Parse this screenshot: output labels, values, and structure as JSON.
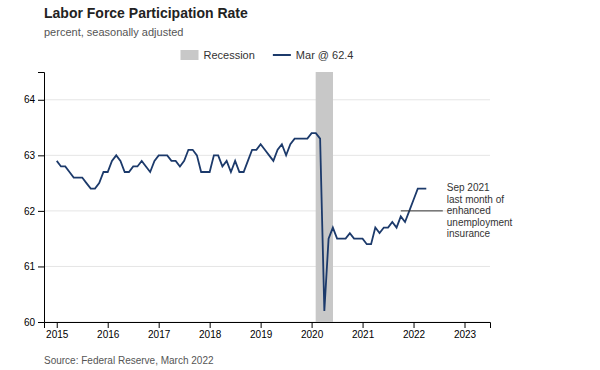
{
  "chart_data": {
    "type": "line",
    "title": "Labor Force Participation Rate",
    "subtitle": "percent, seasonally adjusted",
    "source": "Source: Federal Reserve, March 2022",
    "x": [
      2015.0,
      2015.083,
      2015.167,
      2015.25,
      2015.333,
      2015.417,
      2015.5,
      2015.583,
      2015.667,
      2015.75,
      2015.833,
      2015.917,
      2016.0,
      2016.083,
      2016.167,
      2016.25,
      2016.333,
      2016.417,
      2016.5,
      2016.583,
      2016.667,
      2016.75,
      2016.833,
      2016.917,
      2017.0,
      2017.083,
      2017.167,
      2017.25,
      2017.333,
      2017.417,
      2017.5,
      2017.583,
      2017.667,
      2017.75,
      2017.833,
      2017.917,
      2018.0,
      2018.083,
      2018.167,
      2018.25,
      2018.333,
      2018.417,
      2018.5,
      2018.583,
      2018.667,
      2018.75,
      2018.833,
      2018.917,
      2019.0,
      2019.083,
      2019.167,
      2019.25,
      2019.333,
      2019.417,
      2019.5,
      2019.583,
      2019.667,
      2019.75,
      2019.833,
      2019.917,
      2020.0,
      2020.083,
      2020.167,
      2020.25,
      2020.333,
      2020.417,
      2020.5,
      2020.583,
      2020.667,
      2020.75,
      2020.833,
      2020.917,
      2021.0,
      2021.083,
      2021.167,
      2021.25,
      2021.333,
      2021.417,
      2021.5,
      2021.583,
      2021.667,
      2021.75,
      2021.833,
      2021.917,
      2022.0,
      2022.083,
      2022.167,
      2022.25
    ],
    "series": [
      {
        "name": "Mar @ 62.4",
        "color": "#1c3a6b",
        "values": [
          62.9,
          62.8,
          62.8,
          62.7,
          62.6,
          62.6,
          62.6,
          62.5,
          62.4,
          62.4,
          62.5,
          62.7,
          62.7,
          62.9,
          63.0,
          62.9,
          62.7,
          62.7,
          62.8,
          62.8,
          62.9,
          62.8,
          62.7,
          62.9,
          63.0,
          63.0,
          63.0,
          62.9,
          62.9,
          62.8,
          62.9,
          63.1,
          63.1,
          63.0,
          62.7,
          62.7,
          62.7,
          63.0,
          63.0,
          62.8,
          62.9,
          62.7,
          62.9,
          62.7,
          62.7,
          62.9,
          63.1,
          63.1,
          63.2,
          63.1,
          63.0,
          62.9,
          63.1,
          63.2,
          63.0,
          63.2,
          63.3,
          63.3,
          63.3,
          63.3,
          63.4,
          63.4,
          63.3,
          60.2,
          61.5,
          61.7,
          61.5,
          61.5,
          61.5,
          61.6,
          61.5,
          61.5,
          61.5,
          61.4,
          61.4,
          61.7,
          61.6,
          61.7,
          61.7,
          61.8,
          61.7,
          61.9,
          61.8,
          62.0,
          62.2,
          62.4,
          62.4,
          62.4
        ]
      }
    ],
    "shaded_regions": [
      {
        "name": "Recession",
        "x": [
          2020.08,
          2020.42
        ],
        "color": "#c8c8c8"
      }
    ],
    "annotations": [
      {
        "text": "Sep 2021\nlast month of\nenhanced\nunemployment\ninsurance",
        "x": 2021.75,
        "y": 62.0
      }
    ],
    "xlim": [
      2014.75,
      2023.5
    ],
    "xticks": [
      2015,
      2016,
      2017,
      2018,
      2019,
      2020,
      2021,
      2022,
      2023
    ],
    "ylim": [
      60.0,
      64.5
    ],
    "yticks": [
      60,
      61,
      62,
      63,
      64
    ],
    "grid": true
  }
}
